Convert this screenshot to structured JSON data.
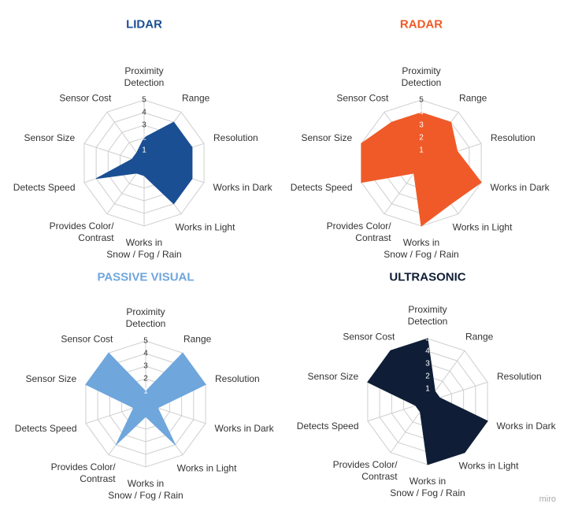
{
  "chart_data": [
    {
      "type": "radar",
      "title": "LIDAR",
      "categories": [
        "Proximity\nDetection",
        "Range",
        "Resolution",
        "Works in Dark",
        "Works in Light",
        "Works in\nSnow / Fog / Rain",
        "Provides Color/\nContrast",
        "Detects Speed",
        "Sensor Size",
        "Sensor Cost"
      ],
      "series": [
        {
          "color": "#1b4f93",
          "values": [
            2,
            4,
            4,
            4,
            4,
            1,
            1,
            4,
            1,
            1
          ]
        }
      ],
      "rlim": [
        0,
        5
      ],
      "rticks": [
        1,
        2,
        3,
        4,
        5
      ]
    },
    {
      "type": "radar",
      "title": "RADAR",
      "categories": [
        "Proximity\nDetection",
        "Range",
        "Resolution",
        "Works in Dark",
        "Works in Light",
        "Works in\nSnow / Fog / Rain",
        "Provides Color/\nContrast",
        "Detects Speed",
        "Sensor Size",
        "Sensor Cost"
      ],
      "series": [
        {
          "color": "#f05a28",
          "values": [
            4,
            4,
            3,
            5,
            4,
            5,
            1,
            5,
            5,
            4
          ]
        }
      ],
      "rlim": [
        0,
        5
      ],
      "rticks": [
        1,
        2,
        3,
        4,
        5
      ]
    },
    {
      "type": "radar",
      "title": "PASSIVE VISUAL",
      "categories": [
        "Proximity\nDetection",
        "Range",
        "Resolution",
        "Works in Dark",
        "Works in Light",
        "Works in\nSnow / Fog / Rain",
        "Provides Color/\nContrast",
        "Detects Speed",
        "Sensor Size",
        "Sensor Cost"
      ],
      "series": [
        {
          "color": "#6fa6dc",
          "values": [
            1,
            5,
            5,
            1,
            4,
            1,
            4,
            1,
            5,
            5
          ]
        }
      ],
      "rlim": [
        0,
        5
      ],
      "rticks": [
        1,
        2,
        3,
        4,
        5
      ]
    },
    {
      "type": "radar",
      "title": "ULTRASONIC",
      "categories": [
        "Proximity\nDetection",
        "Range",
        "Resolution",
        "Works in Dark",
        "Works in Light",
        "Works in\nSnow / Fog / Rain",
        "Provides Color/\nContrast",
        "Detects Speed",
        "Sensor Size",
        "Sensor Cost"
      ],
      "series": [
        {
          "color": "#0f1e36",
          "values": [
            5,
            1,
            1,
            5,
            5,
            5,
            1,
            1,
            5,
            5
          ]
        }
      ],
      "rlim": [
        0,
        5
      ],
      "rticks": [
        1,
        2,
        3,
        4,
        5
      ]
    }
  ],
  "watermark": "miro"
}
